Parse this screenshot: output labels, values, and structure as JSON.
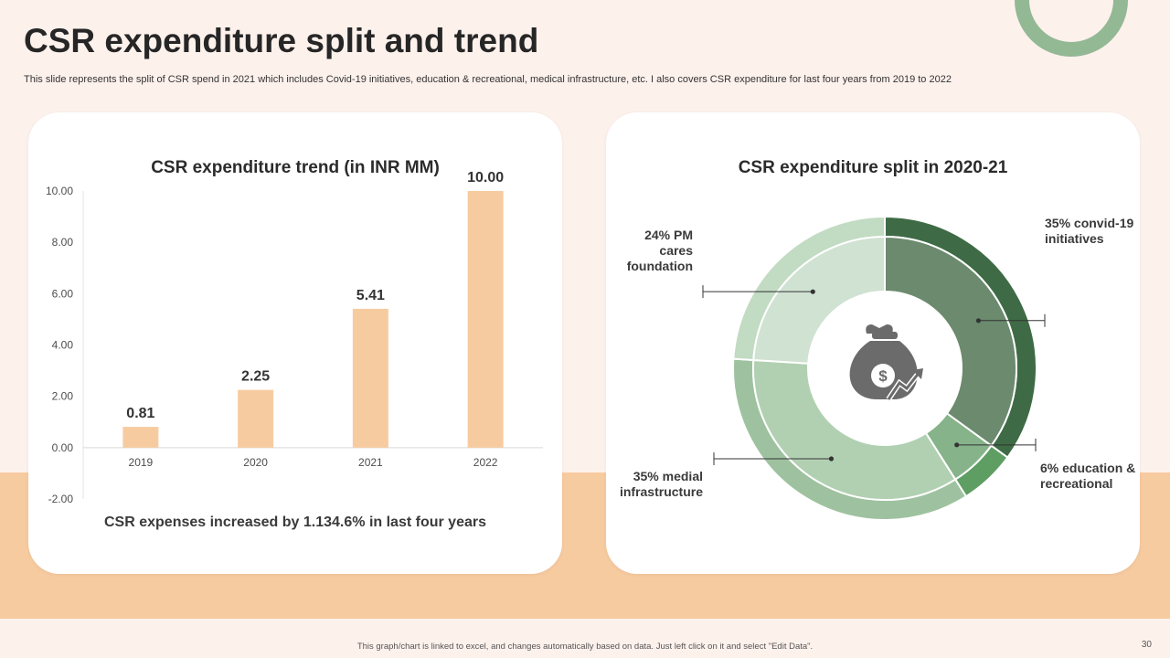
{
  "slide": {
    "title": "CSR expenditure split and trend",
    "subtitle": "This slide represents the split of CSR spend in 2021 which includes Covid-19 initiatives, education & recreational, medical infrastructure, etc. I also covers CSR expenditure for last four years from 2019 to 2022",
    "bottom_note": "This graph/chart is linked to excel, and changes automatically based on data. Just left click on it and select \"Edit Data\".",
    "page_number": "30"
  },
  "colors": {
    "bar": "#f7cba0",
    "accent_ring": "#93b894",
    "covid": "#3e6b45",
    "covid_inner": "#6b8a6e",
    "education": "#5e9e63",
    "education_inner": "#86b38a",
    "medial": "#9ec29f",
    "medial_inner": "#b1d0b2",
    "pm_cares": "#c2dbc3",
    "pm_cares_inner": "#d0e2d1"
  },
  "trend": {
    "footnote": "CSR expenses increased by 1.134.6% in last four years"
  },
  "split": {
    "icon": "money-bag-growth-icon"
  },
  "chart_data": [
    {
      "type": "bar",
      "title": "CSR expenditure trend (in INR MM)",
      "categories": [
        "2019",
        "2020",
        "2021",
        "2022"
      ],
      "values": [
        0.81,
        2.25,
        5.41,
        10.0
      ],
      "value_labels": [
        "0.81",
        "2.25",
        "5.41",
        "10.00"
      ],
      "ylim": [
        -2,
        10
      ],
      "yticks": [
        "10.00",
        "8.00",
        "6.00",
        "4.00",
        "2.00",
        "0.00",
        "-2.00"
      ],
      "xlabel": "",
      "ylabel": ""
    },
    {
      "type": "pie",
      "title": "CSR expenditure split in 2020-21",
      "slices": [
        {
          "key": "covid",
          "label": "35% convid-19 initiatives",
          "value": 35
        },
        {
          "key": "education",
          "label": "6% education & recreational",
          "value": 6
        },
        {
          "key": "medial",
          "label": "35% medial infrastructure",
          "value": 35
        },
        {
          "key": "pm_cares",
          "label": "24% PM cares foundation",
          "value": 24
        }
      ]
    }
  ]
}
